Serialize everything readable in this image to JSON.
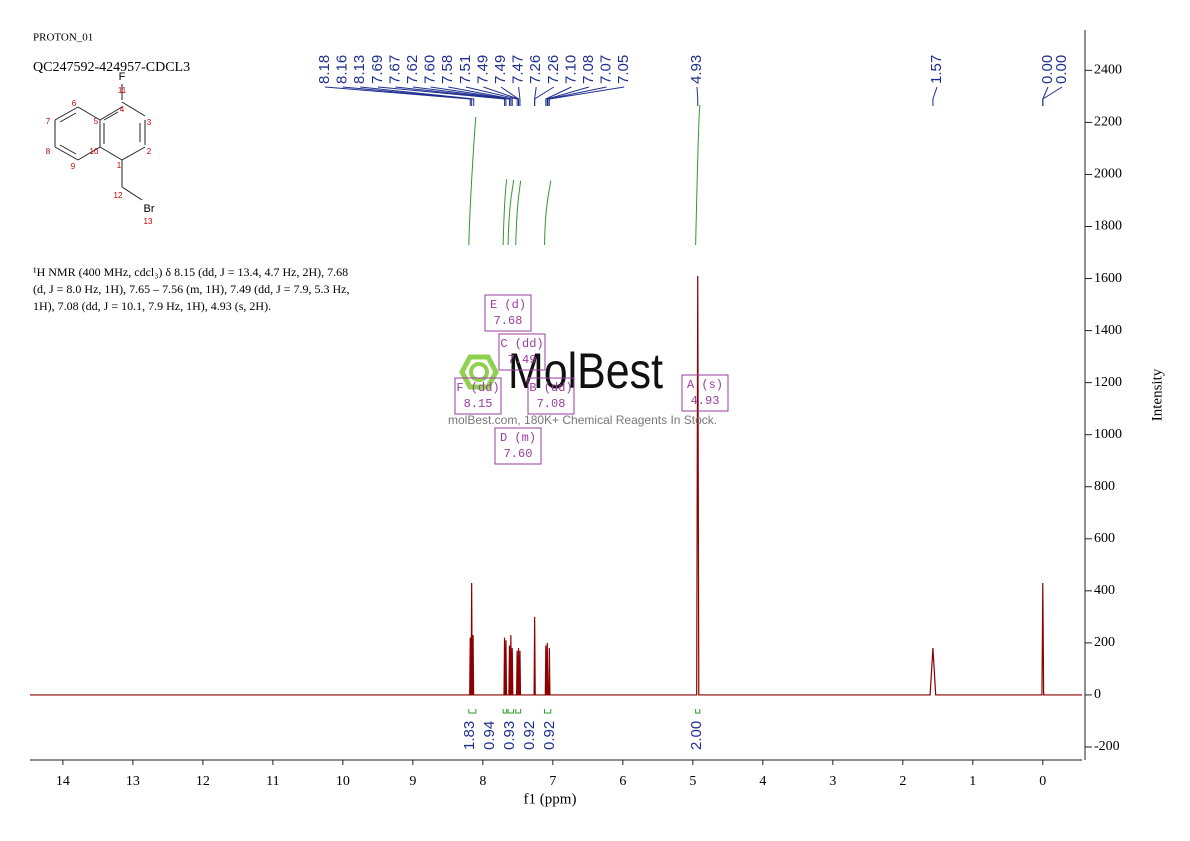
{
  "header": {
    "experiment": "PROTON_01",
    "sample": "QC247592-424957-CDCL3"
  },
  "structure": {
    "labels": [
      "F",
      "11",
      "4",
      "3",
      "2",
      "1",
      "10",
      "5",
      "6",
      "7",
      "8",
      "9",
      "12",
      "Br",
      "13"
    ]
  },
  "description": [
    "¹H NMR (400 MHz, cdcl₃) δ 8.15 (dd, J = 13.4, 4.7 Hz, 2H), 7.68",
    "(d, J = 8.0 Hz, 1H), 7.65 – 7.56 (m, 1H), 7.49 (dd, J = 7.9, 5.3 Hz,",
    "1H), 7.08 (dd, J = 10.1, 7.9 Hz, 1H), 4.93 (s, 2H)."
  ],
  "watermark": {
    "logo": "MolBest",
    "tagline": "molBest.com, 180K+ Chemical Reagents In Stock."
  },
  "chart_data": {
    "type": "line",
    "x_label": "f1 (ppm)",
    "y_label": "Intensity",
    "color": "#8b0000",
    "x": [
      14.47,
      8.188,
      8.18,
      8.172,
      8.168,
      8.16,
      8.152,
      8.148,
      8.14,
      8.132,
      7.698,
      7.69,
      7.682,
      7.678,
      7.67,
      7.662,
      7.628,
      7.62,
      7.612,
      7.608,
      7.6,
      7.592,
      7.588,
      7.58,
      7.572,
      7.518,
      7.51,
      7.502,
      7.498,
      7.49,
      7.482,
      7.478,
      7.47,
      7.462,
      7.268,
      7.26,
      7.252,
      7.108,
      7.1,
      7.092,
      7.088,
      7.08,
      7.072,
      7.058,
      7.05,
      7.042,
      4.945,
      4.93,
      4.915,
      1.61,
      1.57,
      1.53,
      0.012,
      0,
      -0.012,
      -0.56
    ],
    "values": [
      0,
      0,
      220,
      0,
      0,
      430,
      0,
      0,
      230,
      0,
      0,
      220,
      0,
      0,
      210,
      0,
      0,
      190,
      0,
      0,
      230,
      0,
      0,
      180,
      0,
      0,
      170,
      0,
      0,
      180,
      0,
      0,
      170,
      0,
      0,
      300,
      0,
      0,
      190,
      0,
      0,
      200,
      0,
      0,
      180,
      0,
      0,
      1610,
      0,
      0,
      180,
      0,
      0,
      430,
      0,
      0
    ],
    "xlim": [
      14.47,
      -0.56
    ],
    "ylim": [
      -250,
      2555
    ],
    "xticks": [
      14,
      13,
      12,
      11,
      10,
      9,
      8,
      7,
      6,
      5,
      4,
      3,
      2,
      1,
      0
    ],
    "yticks": [
      -200,
      0,
      200,
      400,
      600,
      800,
      1000,
      1200,
      1400,
      1600,
      1800,
      2000,
      2200,
      2400
    ],
    "peak_labels": [
      "8.18",
      "8.16",
      "8.13",
      "7.69",
      "7.67",
      "7.62",
      "7.60",
      "7.58",
      "7.51",
      "7.49",
      "7.49",
      "7.47",
      "7.26",
      "7.26",
      "7.10",
      "7.08",
      "7.07",
      "7.05",
      "4.93",
      "1.57",
      "0.00",
      "0.00"
    ],
    "integrals": [
      {
        "from": 8.2,
        "to": 8.1,
        "label": "1.83"
      },
      {
        "from": 7.71,
        "to": 7.66,
        "label": "0.94"
      },
      {
        "from": 7.64,
        "to": 7.56,
        "label": "0.93"
      },
      {
        "from": 7.53,
        "to": 7.46,
        "label": "0.92"
      },
      {
        "from": 7.12,
        "to": 7.03,
        "label": "0.92"
      },
      {
        "from": 4.96,
        "to": 4.9,
        "label": "2.00"
      }
    ],
    "multiplets": [
      {
        "name": "E (d)",
        "shift": "7.68"
      },
      {
        "name": "C (dd)",
        "shift": "7.49"
      },
      {
        "name": "F (dd)",
        "shift": "8.15"
      },
      {
        "name": "B (dd)",
        "shift": "7.08"
      },
      {
        "name": "A (s)",
        "shift": "4.93"
      },
      {
        "name": "D (m)",
        "shift": "7.60"
      }
    ]
  }
}
